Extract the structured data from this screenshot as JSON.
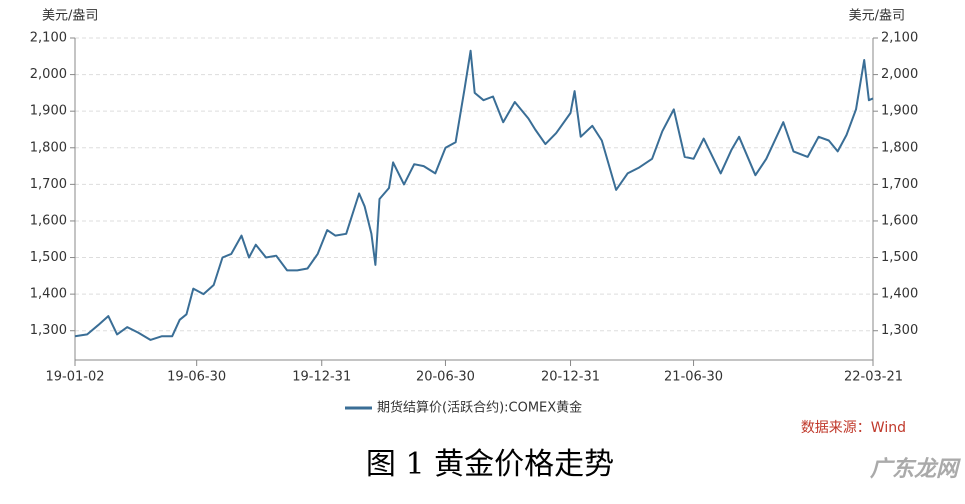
{
  "chart_data": {
    "type": "line",
    "y_label": "美元/盎司",
    "legend": "bottom",
    "source": "数据来源：Wind",
    "caption": "图 1  黄金价格走势",
    "watermark": "广东龙网",
    "xlim": [
      "19-01-02",
      "22-03-21"
    ],
    "xticks": [
      "19-01-02",
      "19-06-30",
      "19-12-31",
      "20-06-30",
      "20-12-31",
      "21-06-30",
      "22-03-21"
    ],
    "ylim": [
      1220,
      2100
    ],
    "yticks": [
      {
        "value": 1300,
        "label": "1,300"
      },
      {
        "value": 1400,
        "label": "1,400"
      },
      {
        "value": 1500,
        "label": "1,500"
      },
      {
        "value": 1600,
        "label": "1,600"
      },
      {
        "value": 1700,
        "label": "1,700"
      },
      {
        "value": 1800,
        "label": "1,800"
      },
      {
        "value": 1900,
        "label": "1,900"
      },
      {
        "value": 2000,
        "label": "2,000"
      },
      {
        "value": 2100,
        "label": "2,100"
      }
    ],
    "grid": true,
    "x": [
      "19-01-02",
      "19-01-20",
      "19-02-05",
      "19-02-20",
      "19-03-05",
      "19-03-20",
      "19-04-05",
      "19-04-23",
      "19-05-10",
      "19-05-25",
      "19-06-05",
      "19-06-15",
      "19-06-25",
      "19-07-10",
      "19-07-25",
      "19-08-07",
      "19-08-20",
      "19-09-04",
      "19-09-15",
      "19-09-25",
      "19-10-10",
      "19-10-25",
      "19-11-10",
      "19-11-25",
      "19-12-10",
      "19-12-25",
      "20-01-08",
      "20-01-20",
      "20-02-05",
      "20-02-24",
      "20-03-03",
      "20-03-13",
      "20-03-19",
      "20-03-25",
      "20-04-08",
      "20-04-14",
      "20-04-30",
      "20-05-15",
      "20-05-29",
      "20-06-15",
      "20-06-30",
      "20-07-15",
      "20-07-28",
      "20-08-06",
      "20-08-12",
      "20-08-25",
      "20-09-08",
      "20-09-23",
      "20-10-10",
      "20-10-30",
      "20-11-09",
      "20-11-24",
      "20-12-10",
      "20-12-31",
      "21-01-06",
      "21-01-15",
      "21-02-01",
      "21-02-15",
      "21-03-08",
      "21-03-25",
      "21-04-10",
      "21-04-30",
      "21-05-15",
      "21-06-01",
      "21-06-17",
      "21-06-30",
      "21-07-15",
      "21-08-09",
      "21-08-25",
      "21-09-05",
      "21-09-29",
      "21-10-15",
      "21-11-09",
      "21-11-24",
      "21-12-15",
      "21-12-31",
      "22-01-15",
      "22-01-28",
      "22-02-10",
      "22-02-24",
      "22-03-08",
      "22-03-15",
      "22-03-21"
    ],
    "series": [
      {
        "name": "期货结算价(活跃合约):COMEX黄金",
        "color": "#3a6e96",
        "values": [
          1285,
          1290,
          1315,
          1340,
          1290,
          1310,
          1295,
          1275,
          1285,
          1285,
          1330,
          1345,
          1415,
          1400,
          1425,
          1500,
          1510,
          1560,
          1500,
          1535,
          1500,
          1505,
          1465,
          1465,
          1470,
          1510,
          1575,
          1560,
          1565,
          1675,
          1640,
          1565,
          1480,
          1660,
          1690,
          1760,
          1700,
          1755,
          1750,
          1730,
          1800,
          1815,
          1960,
          2065,
          1950,
          1930,
          1940,
          1870,
          1925,
          1880,
          1850,
          1810,
          1840,
          1895,
          1955,
          1830,
          1860,
          1820,
          1685,
          1730,
          1745,
          1770,
          1845,
          1905,
          1775,
          1770,
          1825,
          1730,
          1795,
          1830,
          1725,
          1770,
          1870,
          1790,
          1775,
          1830,
          1820,
          1790,
          1835,
          1905,
          2040,
          1930,
          1935
        ]
      }
    ]
  }
}
